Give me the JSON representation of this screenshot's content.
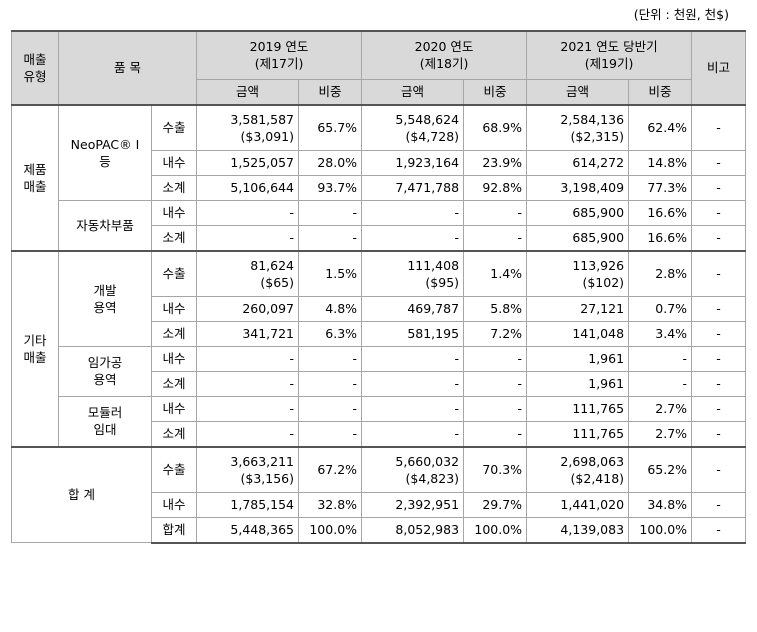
{
  "unit_note": "(단위 : 천원, 천$)",
  "header": {
    "sales_type": [
      "매출",
      "유형"
    ],
    "item": "품 목",
    "periods": [
      {
        "year": "2019 연도",
        "term": "(제17기)"
      },
      {
        "year": "2020 연도",
        "term": "(제18기)"
      },
      {
        "year": "2021 연도 당반기",
        "term": "(제19기)"
      }
    ],
    "amount": "금액",
    "ratio": "비중",
    "remark": "비고"
  },
  "groups": {
    "product": [
      "제품",
      "매출"
    ],
    "other": [
      "기타",
      "매출"
    ],
    "total": "합 계"
  },
  "items": {
    "neopac": [
      "NeoPAC® I",
      "등"
    ],
    "auto_parts": "자동차부품",
    "dev_service": [
      "개발",
      "용역"
    ],
    "contract_mfg": [
      "임가공",
      "용역"
    ],
    "mold_rental": [
      "모듈러",
      "임대"
    ]
  },
  "kinds": {
    "export": "수출",
    "domestic": "내수",
    "subtotal": "소계",
    "total": "합계"
  },
  "rows": {
    "neo_export": {
      "v": [
        [
          "3,581,587",
          "($3,091)"
        ],
        "65.7%",
        [
          "5,548,624",
          "($4,728)"
        ],
        "68.9%",
        [
          "2,584,136",
          "($2,315)"
        ],
        "62.4%"
      ],
      "remark": "-"
    },
    "neo_domestic": {
      "v": [
        "1,525,057",
        "28.0%",
        "1,923,164",
        "23.9%",
        "614,272",
        "14.8%"
      ],
      "remark": "-"
    },
    "neo_subtotal": {
      "v": [
        "5,106,644",
        "93.7%",
        "7,471,788",
        "92.8%",
        "3,198,409",
        "77.3%"
      ],
      "remark": "-"
    },
    "auto_domestic": {
      "v": [
        "-",
        "-",
        "-",
        "-",
        "685,900",
        "16.6%"
      ],
      "remark": "-"
    },
    "auto_subtotal": {
      "v": [
        "-",
        "-",
        "-",
        "-",
        "685,900",
        "16.6%"
      ],
      "remark": "-"
    },
    "dev_export": {
      "v": [
        [
          "81,624",
          "($65)"
        ],
        "1.5%",
        [
          "111,408",
          "($95)"
        ],
        "1.4%",
        [
          "113,926",
          "($102)"
        ],
        "2.8%"
      ],
      "remark": "-"
    },
    "dev_domestic": {
      "v": [
        "260,097",
        "4.8%",
        "469,787",
        "5.8%",
        "27,121",
        "0.7%"
      ],
      "remark": "-"
    },
    "dev_subtotal": {
      "v": [
        "341,721",
        "6.3%",
        "581,195",
        "7.2%",
        "141,048",
        "3.4%"
      ],
      "remark": "-"
    },
    "cm_domestic": {
      "v": [
        "-",
        "-",
        "-",
        "-",
        "1,961",
        "-"
      ],
      "remark": "-"
    },
    "cm_subtotal": {
      "v": [
        "-",
        "-",
        "-",
        "-",
        "1,961",
        "-"
      ],
      "remark": "-"
    },
    "mold_domestic": {
      "v": [
        "-",
        "-",
        "-",
        "-",
        "111,765",
        "2.7%"
      ],
      "remark": "-"
    },
    "mold_subtotal": {
      "v": [
        "-",
        "-",
        "-",
        "-",
        "111,765",
        "2.7%"
      ],
      "remark": "-"
    },
    "tot_export": {
      "v": [
        [
          "3,663,211",
          "($3,156)"
        ],
        "67.2%",
        [
          "5,660,032",
          "($4,823)"
        ],
        "70.3%",
        [
          "2,698,063",
          "($2,418)"
        ],
        "65.2%"
      ],
      "remark": "-"
    },
    "tot_domestic": {
      "v": [
        "1,785,154",
        "32.8%",
        "2,392,951",
        "29.7%",
        "1,441,020",
        "34.8%"
      ],
      "remark": "-"
    },
    "tot_total": {
      "v": [
        "5,448,365",
        "100.0%",
        "8,052,983",
        "100.0%",
        "4,139,083",
        "100.0%"
      ],
      "remark": "-"
    }
  }
}
